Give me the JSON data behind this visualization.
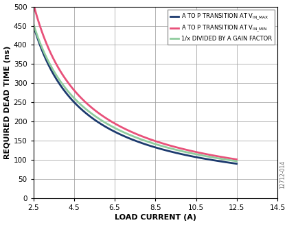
{
  "xlim": [
    2.5,
    14.5
  ],
  "ylim": [
    0,
    500
  ],
  "xticks": [
    2.5,
    4.5,
    6.5,
    8.5,
    10.5,
    12.5,
    14.5
  ],
  "yticks": [
    0,
    50,
    100,
    150,
    200,
    250,
    300,
    350,
    400,
    450,
    500
  ],
  "xlabel": "LOAD CURRENT (A)",
  "ylabel": "REQUIRED DEAD TIME (ns)",
  "xlabel_fontsize": 8.0,
  "ylabel_fontsize": 8.0,
  "watermark": "12712-014",
  "legend": [
    {
      "color": "#1c3a6e",
      "lw": 2.0
    },
    {
      "color": "#e8517a",
      "lw": 2.0
    },
    {
      "color": "#8fcc9e",
      "lw": 2.0
    }
  ],
  "background_color": "#ffffff",
  "grid_color": "#999999",
  "x_curve_end": 12.5,
  "k_max": 1130,
  "k_min": 1270,
  "k_gain_num": 1233,
  "b_gain": 0.21
}
